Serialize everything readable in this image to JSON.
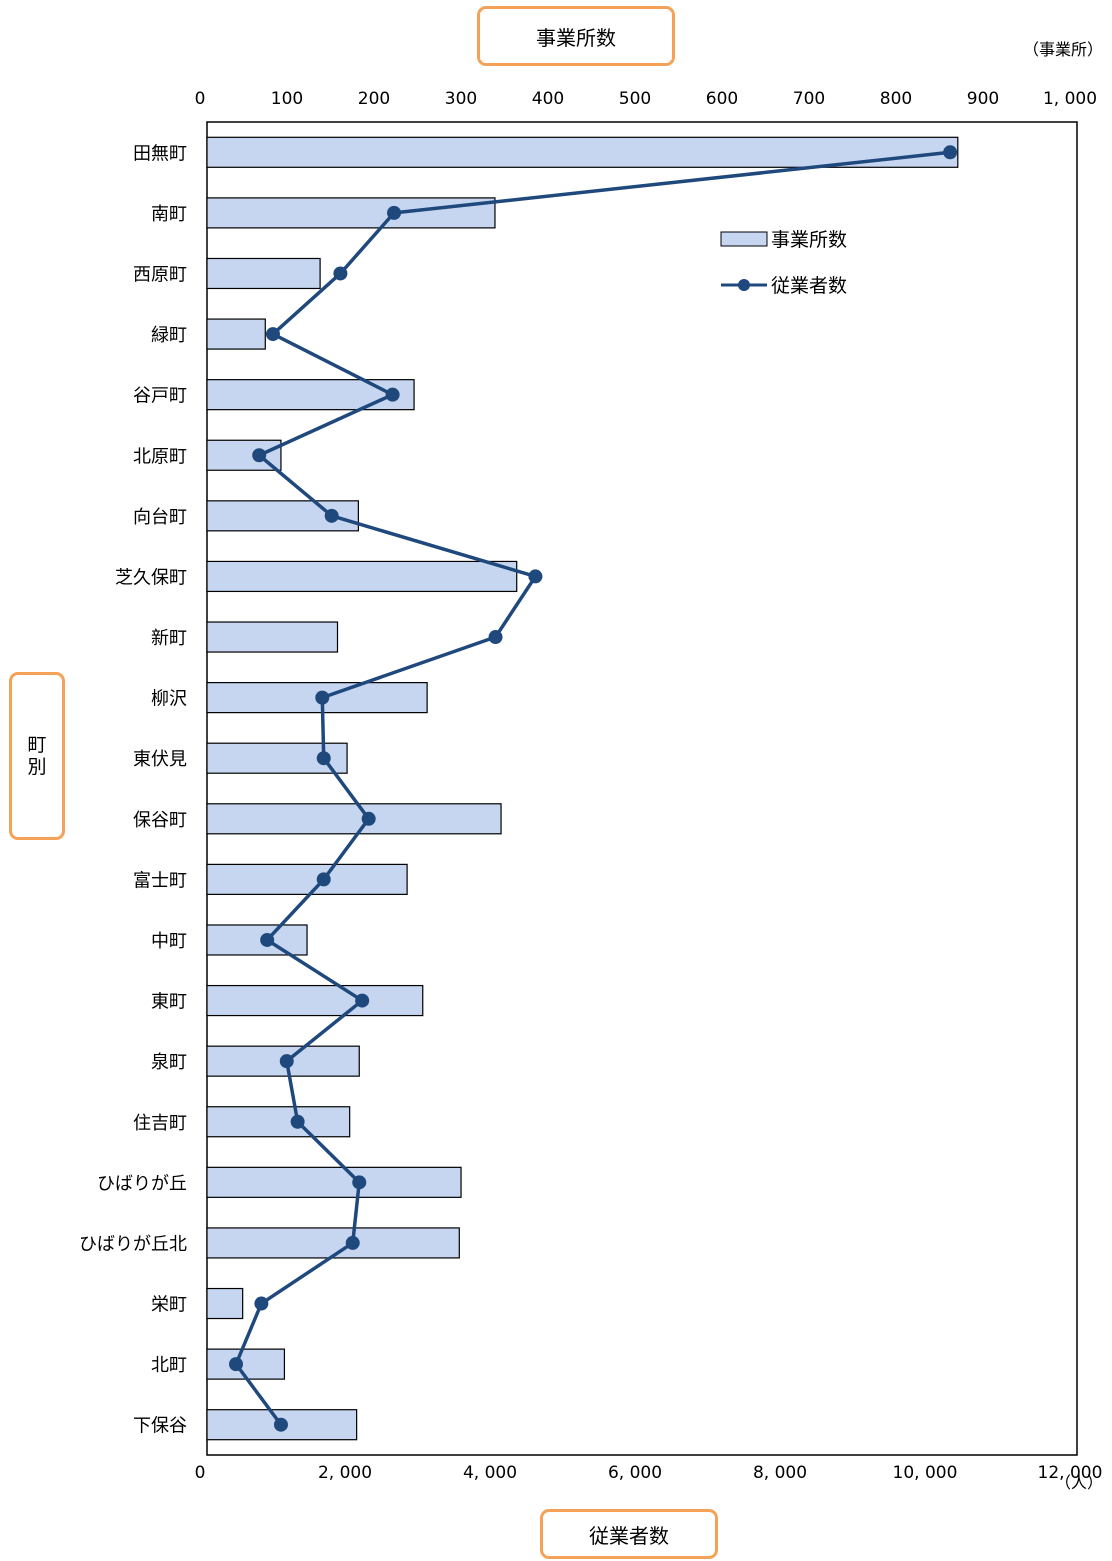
{
  "chart_data": {
    "type": "bar",
    "orientation": "horizontal",
    "categories": [
      "田無町",
      "南町",
      "西原町",
      "緑町",
      "谷戸町",
      "北原町",
      "向台町",
      "芝久保町",
      "新町",
      "柳沢",
      "東伏見",
      "保谷町",
      "富士町",
      "中町",
      "東町",
      "泉町",
      "住吉町",
      "ひばりが丘",
      "ひばりが丘北",
      "栄町",
      "北町",
      "下保谷"
    ],
    "series": [
      {
        "name": "事業所数",
        "type": "bar",
        "axis": "top",
        "values": [
          863,
          331,
          130,
          67,
          238,
          85,
          174,
          356,
          150,
          253,
          161,
          338,
          230,
          115,
          248,
          175,
          164,
          292,
          290,
          41,
          89,
          172
        ],
        "color": "#C6D6F0"
      },
      {
        "name": "従業者数",
        "type": "line",
        "axis": "bottom",
        "values": [
          10250,
          2580,
          1840,
          910,
          2560,
          720,
          1720,
          4530,
          3980,
          1590,
          1610,
          2230,
          1610,
          830,
          2140,
          1100,
          1250,
          2100,
          2010,
          750,
          400,
          1020
        ],
        "color": "#1F497D"
      }
    ],
    "top_axis": {
      "title": "事業所数",
      "unit": "（事業所）",
      "min": 0,
      "max": 1000,
      "ticks": [
        "0",
        "100",
        "200",
        "300",
        "400",
        "500",
        "600",
        "700",
        "800",
        "900",
        "1, 000"
      ]
    },
    "bottom_axis": {
      "title": "従業者数",
      "unit": "（人）",
      "min": 0,
      "max": 12000,
      "ticks": [
        "0",
        "2, 000",
        "4, 000",
        "6, 000",
        "8, 000",
        "10, 000",
        "12, 000"
      ]
    },
    "ylabel": "町別",
    "legend": [
      "事業所数",
      "従業者数"
    ],
    "legend_position": "top-right",
    "grid": false
  }
}
